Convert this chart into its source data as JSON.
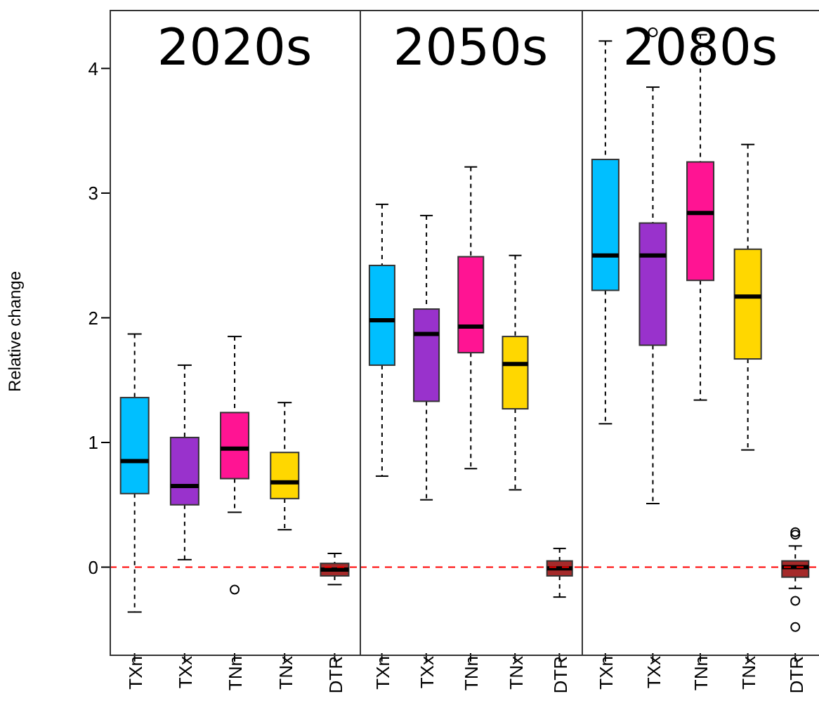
{
  "chart_data": [
    {
      "type": "box",
      "title": "2020s",
      "ylabel": "Relative change",
      "categories": [
        "TXn",
        "TXx",
        "TNn",
        "TNx",
        "DTR"
      ],
      "colors": [
        "#00bfff",
        "#9932cc",
        "#ff1493",
        "#ffd700",
        "#a52a2a"
      ],
      "ylim": [
        -0.69,
        4.47
      ],
      "yticks": [
        0,
        1,
        2,
        3,
        4
      ],
      "boxes": [
        {
          "low": -0.36,
          "q1": 0.59,
          "median": 0.85,
          "q3": 1.36,
          "high": 1.87
        },
        {
          "low": 0.06,
          "q1": 0.5,
          "median": 0.65,
          "q3": 1.04,
          "high": 1.62
        },
        {
          "low": 0.44,
          "q1": 0.71,
          "median": 0.95,
          "q3": 1.24,
          "high": 1.85,
          "outliers": [
            -0.18
          ]
        },
        {
          "low": 0.3,
          "q1": 0.55,
          "median": 0.68,
          "q3": 0.92,
          "high": 1.32
        },
        {
          "low": -0.14,
          "q1": -0.07,
          "median": -0.02,
          "q3": 0.03,
          "high": 0.11
        }
      ],
      "ref_lines": [
        {
          "axis": "y",
          "value": 0,
          "label": null,
          "color": "#ff0000",
          "line_style": "dashed"
        }
      ]
    },
    {
      "type": "box",
      "title": "2050s",
      "categories": [
        "TXn",
        "TXx",
        "TNn",
        "TNx",
        "DTR"
      ],
      "colors": [
        "#00bfff",
        "#9932cc",
        "#ff1493",
        "#ffd700",
        "#a52a2a"
      ],
      "ylim": [
        -0.69,
        4.47
      ],
      "yticks": [
        0,
        1,
        2,
        3,
        4
      ],
      "tick_labels": "x",
      "boxes": [
        {
          "low": 0.73,
          "q1": 1.62,
          "median": 1.98,
          "q3": 2.42,
          "high": 2.91
        },
        {
          "low": 0.54,
          "q1": 1.33,
          "median": 1.87,
          "q3": 2.07,
          "high": 2.82
        },
        {
          "low": 0.79,
          "q1": 1.72,
          "median": 1.93,
          "q3": 2.49,
          "high": 3.21
        },
        {
          "low": 0.62,
          "q1": 1.27,
          "median": 1.63,
          "q3": 1.85,
          "high": 2.5
        },
        {
          "low": -0.24,
          "q1": -0.07,
          "median": -0.01,
          "q3": 0.05,
          "high": 0.15
        }
      ],
      "ref_lines": [
        {
          "axis": "y",
          "value": 0,
          "label": null,
          "color": "#ff0000",
          "line_style": "dashed"
        }
      ]
    },
    {
      "type": "box",
      "title": "2080s",
      "categories": [
        "TXn",
        "TXx",
        "TNn",
        "TNx",
        "DTR"
      ],
      "colors": [
        "#00bfff",
        "#9932cc",
        "#ff1493",
        "#ffd700",
        "#a52a2a"
      ],
      "ylim": [
        -0.69,
        4.47
      ],
      "yticks": [
        0,
        1,
        2,
        3,
        4
      ],
      "tick_labels": "x",
      "boxes": [
        {
          "low": 1.15,
          "q1": 2.22,
          "median": 2.5,
          "q3": 3.27,
          "high": 4.22
        },
        {
          "low": 0.51,
          "q1": 1.78,
          "median": 2.5,
          "q3": 2.76,
          "high": 3.85,
          "outliers": [
            4.29
          ]
        },
        {
          "low": 1.34,
          "q1": 2.3,
          "median": 2.84,
          "q3": 3.25,
          "high": 4.27
        },
        {
          "low": 0.94,
          "q1": 1.67,
          "median": 2.17,
          "q3": 2.55,
          "high": 3.39
        },
        {
          "low": -0.17,
          "q1": -0.08,
          "median": 0.0,
          "q3": 0.05,
          "high": 0.17,
          "outliers": [
            0.28,
            0.26,
            -0.27,
            -0.48
          ]
        }
      ],
      "ref_lines": [
        {
          "axis": "y",
          "value": 0,
          "label": null,
          "color": "#ff0000",
          "line_style": "dashed"
        }
      ]
    }
  ]
}
